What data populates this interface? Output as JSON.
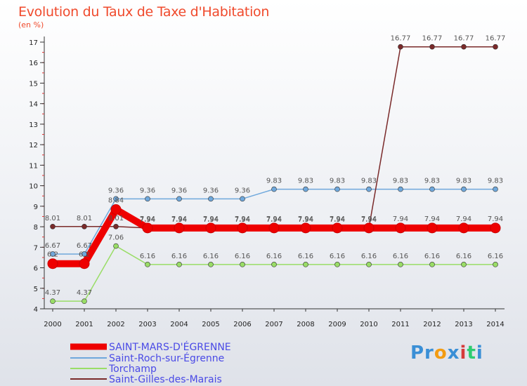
{
  "chart_data": {
    "type": "line",
    "title": "Evolution du Taux de Taxe d'Habitation",
    "subtitle": "(en %)",
    "categories": [
      "2000",
      "2001",
      "2002",
      "2003",
      "2004",
      "2005",
      "2006",
      "2007",
      "2008",
      "2009",
      "2010",
      "2011",
      "2012",
      "2013",
      "2014"
    ],
    "ylim": [
      4,
      17
    ],
    "yticks": [
      "4",
      "5",
      "6",
      "7",
      "8",
      "9",
      "10",
      "11",
      "12",
      "13",
      "14",
      "15",
      "16",
      "17"
    ],
    "grid": false,
    "legend_position": "bottom-left",
    "series": [
      {
        "name": "SAINT-MARS-D'ÉGRENNE",
        "color": "#ee0000",
        "values": [
          6.2,
          6.2,
          8.84,
          7.94,
          7.94,
          7.94,
          7.94,
          7.94,
          7.94,
          7.94,
          7.94,
          7.94,
          7.94,
          7.94,
          7.94
        ],
        "labels": [
          "6.2",
          "6.2",
          "8.84",
          "7.94",
          "7.94",
          "7.94",
          "7.94",
          "7.94",
          "7.94",
          "7.94",
          "7.94",
          "7.94",
          "7.94",
          "7.94",
          "7.94"
        ]
      },
      {
        "name": "Saint-Roch-sur-Égrenne",
        "color": "#6fa8dc",
        "values": [
          6.67,
          6.67,
          9.36,
          9.36,
          9.36,
          9.36,
          9.36,
          9.83,
          9.83,
          9.83,
          9.83,
          9.83,
          9.83,
          9.83,
          9.83
        ],
        "labels": [
          "6.67",
          "6.67",
          "9.36",
          "9.36",
          "9.36",
          "9.36",
          "9.36",
          "9.83",
          "9.83",
          "9.83",
          "9.83",
          "9.83",
          "9.83",
          "9.83",
          "9.83"
        ]
      },
      {
        "name": "Torchamp",
        "color": "#99dd66",
        "values": [
          4.37,
          4.37,
          7.06,
          6.16,
          6.16,
          6.16,
          6.16,
          6.16,
          6.16,
          6.16,
          6.16,
          6.16,
          6.16,
          6.16,
          6.16
        ],
        "labels": [
          "4.37",
          "4.37",
          "7.06",
          "6.16",
          "6.16",
          "6.16",
          "6.16",
          "6.16",
          "6.16",
          "6.16",
          "6.16",
          "6.16",
          "6.16",
          "6.16",
          "6.16"
        ]
      },
      {
        "name": "Saint-Gilles-des-Marais",
        "color": "#7a2a2a",
        "values": [
          8.01,
          8.01,
          8.01,
          7.94,
          7.94,
          7.94,
          7.94,
          7.94,
          7.94,
          7.94,
          7.94,
          16.77,
          16.77,
          16.77,
          16.77
        ],
        "labels": [
          "8.01",
          "8.01",
          "8.01",
          "7.94",
          "7.94",
          "7.94",
          "7.94",
          "7.94",
          "7.94",
          "7.94",
          "7.94",
          "16.77",
          "16.77",
          "16.77",
          "16.77"
        ]
      }
    ]
  },
  "logo": {
    "parts": [
      "Pr",
      "o",
      "x",
      "i",
      "t",
      "i"
    ],
    "colors": [
      "#3a8fd6",
      "#f39c12",
      "#3a8fd6",
      "#d63a3a",
      "#2ecc71",
      "#3a8fd6"
    ]
  }
}
